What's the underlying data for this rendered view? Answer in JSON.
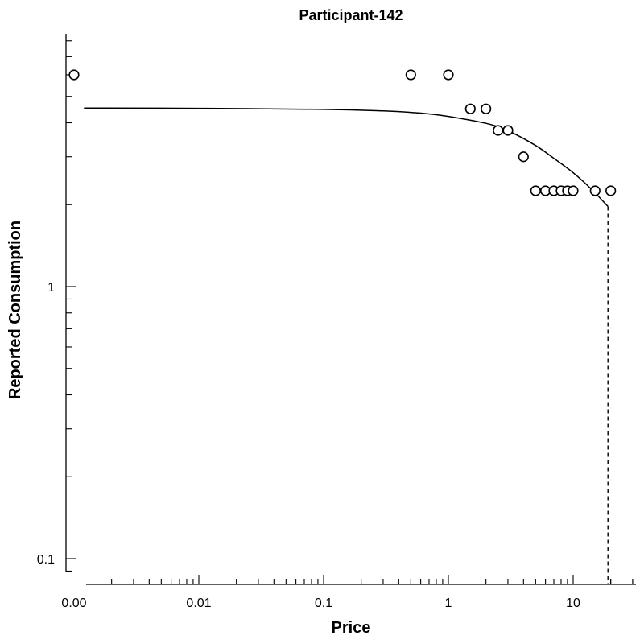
{
  "chart_data": {
    "type": "scatter",
    "title": "Participant-142",
    "xlabel": "Price",
    "ylabel": "Reported Consumption",
    "x_scale": "log",
    "y_scale": "log",
    "xlim": [
      0.0012,
      30
    ],
    "ylim": [
      0.085,
      6.2
    ],
    "x_ticks": [
      {
        "value": 0.001,
        "label": "0.00"
      },
      {
        "value": 0.01,
        "label": "0.01"
      },
      {
        "value": 0.1,
        "label": "0.1"
      },
      {
        "value": 1,
        "label": "1"
      },
      {
        "value": 10,
        "label": "10"
      }
    ],
    "y_ticks": [
      {
        "value": 0.1,
        "label": "0.1"
      },
      {
        "value": 1,
        "label": "1"
      }
    ],
    "points": [
      {
        "x": 0.001,
        "y": 6
      },
      {
        "x": 0.5,
        "y": 6
      },
      {
        "x": 1,
        "y": 6
      },
      {
        "x": 1.5,
        "y": 4.5
      },
      {
        "x": 2,
        "y": 4.5
      },
      {
        "x": 2.5,
        "y": 3.75
      },
      {
        "x": 3,
        "y": 3.75
      },
      {
        "x": 4,
        "y": 3
      },
      {
        "x": 5,
        "y": 2.25
      },
      {
        "x": 6,
        "y": 2.25
      },
      {
        "x": 7,
        "y": 2.25
      },
      {
        "x": 8,
        "y": 2.25
      },
      {
        "x": 9,
        "y": 2.25
      },
      {
        "x": 10,
        "y": 2.25
      },
      {
        "x": 15,
        "y": 2.25
      },
      {
        "x": 20,
        "y": 2.25
      }
    ],
    "fit_curve": [
      {
        "x": 0.0012,
        "y": 4.53
      },
      {
        "x": 0.01,
        "y": 4.52
      },
      {
        "x": 0.1,
        "y": 4.48
      },
      {
        "x": 0.3,
        "y": 4.42
      },
      {
        "x": 0.6,
        "y": 4.34
      },
      {
        "x": 1,
        "y": 4.22
      },
      {
        "x": 2,
        "y": 3.98
      },
      {
        "x": 3,
        "y": 3.74
      },
      {
        "x": 5,
        "y": 3.3
      },
      {
        "x": 7,
        "y": 2.96
      },
      {
        "x": 10,
        "y": 2.62
      },
      {
        "x": 14,
        "y": 2.28
      },
      {
        "x": 19,
        "y": 1.97
      }
    ],
    "pmax": {
      "x": 19,
      "y": 1.97
    },
    "grid": false,
    "legend": "none"
  }
}
